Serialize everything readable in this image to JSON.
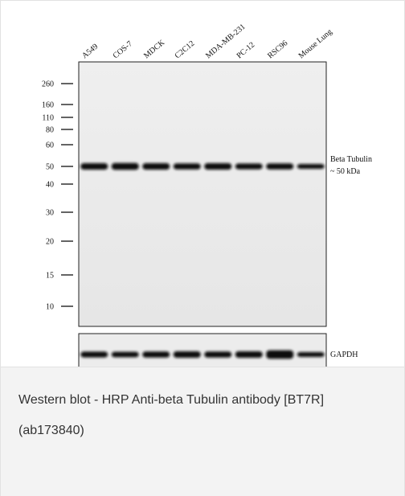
{
  "figure": {
    "lanes": [
      "A549",
      "COS-7",
      "MDCK",
      "C2C12",
      "MDA-MB-231",
      "PC-12",
      "RSC96",
      "Mouse Lung"
    ],
    "markers": [
      "260",
      "160",
      "110",
      "80",
      "60",
      "50",
      "40",
      "30",
      "20",
      "15",
      "10"
    ],
    "band_label": "Beta Tubulin",
    "band_size": "~ 50 kDa",
    "control_label": "GAPDH"
  },
  "caption": "Western blot - HRP Anti-beta Tubulin antibody [BT7R] (ab173840)"
}
